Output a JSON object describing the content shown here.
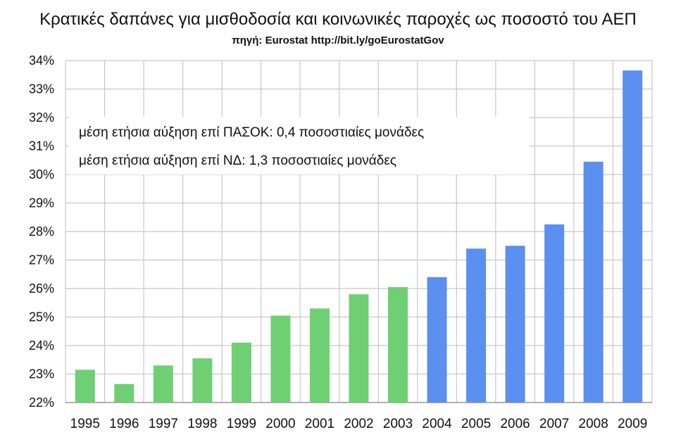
{
  "chart_data": {
    "type": "bar",
    "title": "Κρατικές δαπάνες για μισθοδοσία και κοινωνικές παροχές ως ποσοστό του ΑΕΠ",
    "subtitle": "πηγή: Eurostat http://bit.ly/goEurostatGov",
    "categories": [
      "1995",
      "1996",
      "1997",
      "1998",
      "1999",
      "2000",
      "2001",
      "2002",
      "2003",
      "2004",
      "2005",
      "2006",
      "2007",
      "2008",
      "2009"
    ],
    "values": [
      23.15,
      22.65,
      23.3,
      23.55,
      24.1,
      25.05,
      25.3,
      25.8,
      26.05,
      26.4,
      27.4,
      27.5,
      28.25,
      30.45,
      33.65
    ],
    "bar_colors": [
      "#6fcf73",
      "#6fcf73",
      "#6fcf73",
      "#6fcf73",
      "#6fcf73",
      "#6fcf73",
      "#6fcf73",
      "#6fcf73",
      "#6fcf73",
      "#5b8ff0",
      "#5b8ff0",
      "#5b8ff0",
      "#5b8ff0",
      "#5b8ff0",
      "#5b8ff0"
    ],
    "ylim": [
      22,
      34
    ],
    "yticks": [
      "22%",
      "23%",
      "24%",
      "25%",
      "26%",
      "27%",
      "28%",
      "29%",
      "30%",
      "31%",
      "32%",
      "33%",
      "34%"
    ],
    "grid": true,
    "annotations": [
      "μέση ετήσια αύξηση επί ΠΑΣΟΚ:  0,4 ποσοστιαίες μονάδες",
      "μέση ετήσια αύξηση επί ΝΔ:  1,3 ποσοστιαίες μονάδες"
    ]
  }
}
